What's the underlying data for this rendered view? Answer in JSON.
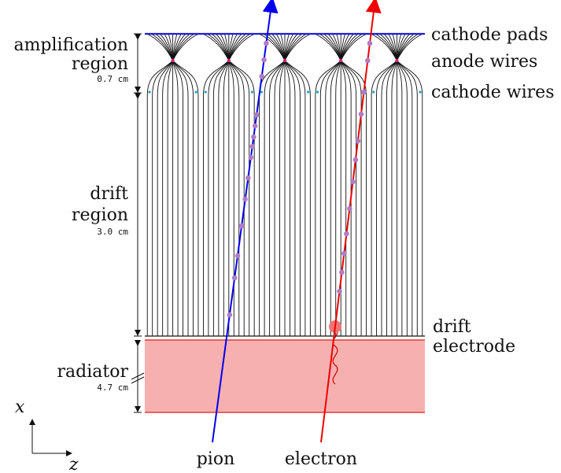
{
  "labels": {
    "cathode_pads": "cathode pads",
    "anode_wires": "anode wires",
    "cathode_wires": "cathode wires",
    "amplification_line1": "amplification",
    "amplification_line2": "region",
    "amplification_size": "0.7 cm",
    "drift_line1": "drift",
    "drift_line2": "region",
    "drift_size": "3.0 cm",
    "radiator": "radiator",
    "radiator_size": "4.7 cm",
    "drift_electrode_line1": "drift",
    "drift_electrode_line2": "electrode",
    "pion": "pion",
    "electron": "electron",
    "axis_x": "x",
    "axis_z": "z"
  },
  "colors": {
    "cathode_pads": "#1f1fd6",
    "anode_wires": "#e0218a",
    "cathode_wires": "#1aa3d6",
    "pion": "#0000ee",
    "electron": "#ee0000",
    "radiator_fill": "#f7b0b0",
    "cluster": "#b07cc6",
    "field_lines": "#111111"
  }
}
